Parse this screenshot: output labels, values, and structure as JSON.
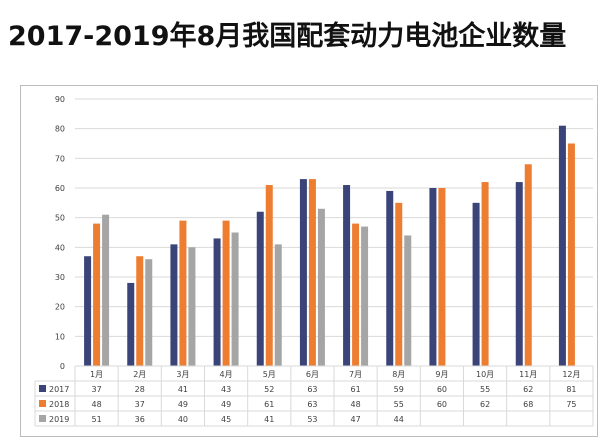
{
  "title": "2017-2019年8月我国配套动力电池企业数量",
  "colors": {
    "2017": "#3b4478",
    "2018": "#ed7d31",
    "2019": "#a5a5a5",
    "grid": "#d9d9d9",
    "axis": "#9a9a9a",
    "text": "#404040"
  },
  "chart_data": {
    "type": "bar",
    "title": "",
    "xlabel": "",
    "ylabel": "",
    "ylim": [
      0,
      90
    ],
    "yticks": [
      0,
      10,
      20,
      30,
      40,
      50,
      60,
      70,
      80,
      90
    ],
    "grid": true,
    "legend": "data-table-left",
    "categories": [
      "1月",
      "2月",
      "3月",
      "4月",
      "5月",
      "6月",
      "7月",
      "8月",
      "9月",
      "10月",
      "11月",
      "12月"
    ],
    "series": [
      {
        "name": "2017",
        "values": [
          37,
          28,
          41,
          43,
          52,
          63,
          61,
          59,
          60,
          55,
          62,
          81
        ]
      },
      {
        "name": "2018",
        "values": [
          48,
          37,
          49,
          49,
          61,
          63,
          48,
          55,
          60,
          62,
          68,
          75
        ]
      },
      {
        "name": "2019",
        "values": [
          51,
          36,
          40,
          45,
          41,
          53,
          47,
          44,
          null,
          null,
          null,
          null
        ]
      }
    ]
  }
}
